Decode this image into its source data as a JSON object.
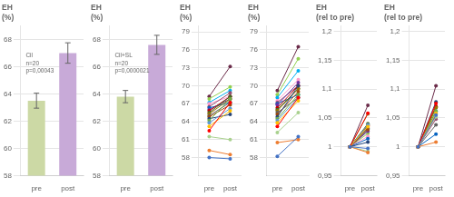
{
  "chart_data": [
    {
      "type": "bar",
      "title": "EH\n(%)",
      "annotation": "Cil\nn=20\np=0,00043",
      "categories": [
        "pre",
        "post"
      ],
      "values": [
        63.5,
        67.0
      ],
      "errors": [
        0.55,
        0.75
      ],
      "colors": [
        "#ccd9a5",
        "#c8aad8"
      ],
      "ylim": [
        58,
        69
      ],
      "yticks": [
        58,
        60,
        62,
        64,
        66,
        68
      ],
      "grid": true
    },
    {
      "type": "bar",
      "title": "EH\n(%)",
      "annotation": "Cil+SL\nn=20\np=0,0000021",
      "categories": [
        "pre",
        "post"
      ],
      "values": [
        63.8,
        67.6
      ],
      "errors": [
        0.45,
        0.7
      ],
      "colors": [
        "#ccd9a5",
        "#c8aad8"
      ],
      "ylim": [
        58,
        69
      ],
      "yticks": [
        58,
        60,
        62,
        64,
        66,
        68
      ],
      "grid": true
    },
    {
      "type": "line",
      "title": "EH\n(%)",
      "categories": [
        "pre",
        "post"
      ],
      "marker": "o",
      "ylim": [
        55,
        80
      ],
      "yticks": [
        58,
        61,
        64,
        67,
        70,
        73,
        76,
        79
      ],
      "grid": true,
      "series": [
        {
          "color": "#4472c4",
          "values": [
            58.0,
            57.8
          ]
        },
        {
          "color": "#ed7d31",
          "values": [
            59.2,
            58.5
          ]
        },
        {
          "color": "#a9d18e",
          "values": [
            61.5,
            61.0
          ]
        },
        {
          "color": "#ff0000",
          "values": [
            62.5,
            67.2
          ]
        },
        {
          "color": "#ffc000",
          "values": [
            63.2,
            65.8
          ]
        },
        {
          "color": "#5b9bd5",
          "values": [
            63.8,
            66.2
          ]
        },
        {
          "color": "#70ad47",
          "values": [
            64.2,
            67.8
          ]
        },
        {
          "color": "#264478",
          "values": [
            64.5,
            65.2
          ]
        },
        {
          "color": "#9e480e",
          "values": [
            64.8,
            66.8
          ]
        },
        {
          "color": "#636363",
          "values": [
            65.0,
            67.2
          ]
        },
        {
          "color": "#997300",
          "values": [
            65.3,
            67.8
          ]
        },
        {
          "color": "#43682b",
          "values": [
            65.5,
            68.2
          ]
        },
        {
          "color": "#c00000",
          "values": [
            65.8,
            68.2
          ]
        },
        {
          "color": "#7030a0",
          "values": [
            66.0,
            67.8
          ]
        },
        {
          "color": "#0563c1",
          "values": [
            66.3,
            67.2
          ]
        },
        {
          "color": "#954f72",
          "values": [
            66.5,
            68.8
          ]
        },
        {
          "color": "#ff99cc",
          "values": [
            67.0,
            68.2
          ]
        },
        {
          "color": "#00b0f0",
          "values": [
            67.2,
            69.2
          ]
        },
        {
          "color": "#92d050",
          "values": [
            67.8,
            69.8
          ]
        },
        {
          "color": "#6b2c4a",
          "values": [
            68.2,
            73.2
          ]
        }
      ]
    },
    {
      "type": "line",
      "title": "EH\n(%)",
      "categories": [
        "pre",
        "post"
      ],
      "marker": "o",
      "ylim": [
        55,
        80
      ],
      "yticks": [
        58,
        61,
        64,
        67,
        70,
        73,
        76,
        79
      ],
      "grid": true,
      "series": [
        {
          "color": "#4472c4",
          "values": [
            58.2,
            61.5
          ]
        },
        {
          "color": "#ed7d31",
          "values": [
            60.5,
            61.0
          ]
        },
        {
          "color": "#a9d18e",
          "values": [
            62.2,
            65.5
          ]
        },
        {
          "color": "#ff0000",
          "values": [
            63.2,
            68.0
          ]
        },
        {
          "color": "#ffc000",
          "values": [
            63.8,
            67.5
          ]
        },
        {
          "color": "#5b9bd5",
          "values": [
            64.2,
            68.0
          ]
        },
        {
          "color": "#70ad47",
          "values": [
            64.5,
            68.5
          ]
        },
        {
          "color": "#264478",
          "values": [
            64.8,
            70.0
          ]
        },
        {
          "color": "#9e480e",
          "values": [
            65.2,
            69.0
          ]
        },
        {
          "color": "#636363",
          "values": [
            65.5,
            68.0
          ]
        },
        {
          "color": "#997300",
          "values": [
            65.8,
            69.5
          ]
        },
        {
          "color": "#43682b",
          "values": [
            66.0,
            69.5
          ]
        },
        {
          "color": "#c00000",
          "values": [
            66.3,
            70.0
          ]
        },
        {
          "color": "#7030a0",
          "values": [
            66.8,
            70.5
          ]
        },
        {
          "color": "#0563c1",
          "values": [
            67.0,
            68.5
          ]
        },
        {
          "color": "#954f72",
          "values": [
            67.2,
            70.0
          ]
        },
        {
          "color": "#ff99cc",
          "values": [
            67.5,
            71.0
          ]
        },
        {
          "color": "#00b0f0",
          "values": [
            68.0,
            72.5
          ]
        },
        {
          "color": "#92d050",
          "values": [
            68.5,
            74.5
          ]
        },
        {
          "color": "#6b2c4a",
          "values": [
            69.2,
            76.5
          ]
        }
      ]
    },
    {
      "type": "line",
      "title": "EH\n(rel to pre)",
      "categories": [
        "pre",
        "post"
      ],
      "marker": "o",
      "ylim": [
        0.95,
        1.21
      ],
      "yticks": [
        {
          "value": 0.95,
          "label": "0,95"
        },
        1,
        {
          "value": 1.05,
          "label": "1,05"
        },
        {
          "value": 1.1,
          "label": "1,1"
        },
        {
          "value": 1.15,
          "label": "1,15"
        },
        {
          "value": 1.2,
          "label": "1,2"
        }
      ],
      "grid": true,
      "series": [
        {
          "color": "#4472c4",
          "values": [
            1,
            0.997
          ]
        },
        {
          "color": "#ed7d31",
          "values": [
            1,
            0.99
          ]
        },
        {
          "color": "#a9d18e",
          "values": [
            1,
            0.992
          ]
        },
        {
          "color": "#ff0000",
          "values": [
            1,
            1.058
          ]
        },
        {
          "color": "#ffc000",
          "values": [
            1,
            1.035
          ]
        },
        {
          "color": "#5b9bd5",
          "values": [
            1,
            1.038
          ]
        },
        {
          "color": "#70ad47",
          "values": [
            1,
            1.057
          ]
        },
        {
          "color": "#264478",
          "values": [
            1,
            1.008
          ]
        },
        {
          "color": "#9e480e",
          "values": [
            1,
            1.03
          ]
        },
        {
          "color": "#636363",
          "values": [
            1,
            1.032
          ]
        },
        {
          "color": "#997300",
          "values": [
            1,
            1.038
          ]
        },
        {
          "color": "#43682b",
          "values": [
            1,
            1.04
          ]
        },
        {
          "color": "#c00000",
          "values": [
            1,
            1.037
          ]
        },
        {
          "color": "#7030a0",
          "values": [
            1,
            1.027
          ]
        },
        {
          "color": "#0563c1",
          "values": [
            1,
            1.014
          ]
        },
        {
          "color": "#954f72",
          "values": [
            1,
            1.033
          ]
        },
        {
          "color": "#ff99cc",
          "values": [
            1,
            1.018
          ]
        },
        {
          "color": "#00b0f0",
          "values": [
            1,
            1.03
          ]
        },
        {
          "color": "#92d050",
          "values": [
            1,
            1.023
          ]
        },
        {
          "color": "#6b2c4a",
          "values": [
            1,
            1.072
          ]
        }
      ]
    },
    {
      "type": "line",
      "title": "EH\n(rel to pre)",
      "categories": [
        "pre",
        "post"
      ],
      "marker": "o",
      "ylim": [
        0.95,
        1.21
      ],
      "yticks": [
        {
          "value": 0.95,
          "label": "0,95"
        },
        1,
        {
          "value": 1.05,
          "label": "1,05"
        },
        {
          "value": 1.1,
          "label": "1,1"
        },
        {
          "value": 1.15,
          "label": "1,15"
        },
        {
          "value": 1.2,
          "label": "1,2"
        }
      ],
      "grid": true,
      "series": [
        {
          "color": "#4472c4",
          "values": [
            1,
            1.055
          ]
        },
        {
          "color": "#ed7d31",
          "values": [
            1,
            1.008
          ]
        },
        {
          "color": "#a9d18e",
          "values": [
            1,
            1.052
          ]
        },
        {
          "color": "#ff0000",
          "values": [
            1,
            1.075
          ]
        },
        {
          "color": "#ffc000",
          "values": [
            1,
            1.058
          ]
        },
        {
          "color": "#5b9bd5",
          "values": [
            1,
            1.058
          ]
        },
        {
          "color": "#70ad47",
          "values": [
            1,
            1.062
          ]
        },
        {
          "color": "#264478",
          "values": [
            1,
            1.078
          ]
        },
        {
          "color": "#9e480e",
          "values": [
            1,
            1.058
          ]
        },
        {
          "color": "#636363",
          "values": [
            1,
            1.038
          ]
        },
        {
          "color": "#997300",
          "values": [
            1,
            1.068
          ]
        },
        {
          "color": "#43682b",
          "values": [
            1,
            1.068
          ]
        },
        {
          "color": "#c00000",
          "values": [
            1,
            1.07
          ]
        },
        {
          "color": "#7030a0",
          "values": [
            1,
            1.055
          ]
        },
        {
          "color": "#0563c1",
          "values": [
            1,
            1.022
          ]
        },
        {
          "color": "#954f72",
          "values": [
            1,
            1.048
          ]
        },
        {
          "color": "#ff99cc",
          "values": [
            1,
            1.05
          ]
        },
        {
          "color": "#00b0f0",
          "values": [
            1,
            1.062
          ]
        },
        {
          "color": "#92d050",
          "values": [
            1,
            1.07
          ]
        },
        {
          "color": "#6b2c4a",
          "values": [
            1,
            1.106
          ]
        }
      ]
    }
  ]
}
